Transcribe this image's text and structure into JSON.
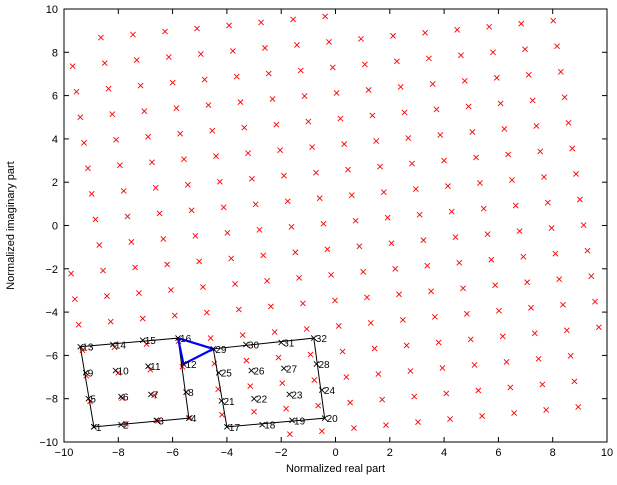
{
  "chart_data": {
    "type": "scatter",
    "title": "",
    "xlabel": "Normalized real part",
    "ylabel": "Normalized imaginary part",
    "xlim": [
      -10,
      10
    ],
    "ylim": [
      -10,
      10
    ],
    "xticks": [
      -10,
      -8,
      -6,
      -4,
      -2,
      0,
      2,
      4,
      6,
      8,
      10
    ],
    "yticks": [
      -10,
      -8,
      -6,
      -4,
      -2,
      0,
      2,
      4,
      6,
      8,
      10
    ],
    "grid": false,
    "marker_color": "#ff0000",
    "box_color": "#000000",
    "path_color": "#0000ff",
    "lattice": {
      "origin": [
        -8.9,
        -9.3
      ],
      "step_a": [
        1.18,
        0.14
      ],
      "step_b": [
        -0.14,
        1.18
      ],
      "a_range": [
        -2,
        16
      ],
      "b_range": [
        -1,
        17
      ]
    },
    "labeled_points": [
      {
        "label": "1",
        "x": -8.9,
        "y": -9.3
      },
      {
        "label": "2",
        "x": -7.9,
        "y": -9.2
      },
      {
        "label": "3",
        "x": -6.6,
        "y": -9.0
      },
      {
        "label": "4",
        "x": -5.4,
        "y": -8.9
      },
      {
        "label": "5",
        "x": -9.1,
        "y": -8.0
      },
      {
        "label": "6",
        "x": -7.9,
        "y": -7.9
      },
      {
        "label": "7",
        "x": -6.8,
        "y": -7.8
      },
      {
        "label": "8",
        "x": -5.5,
        "y": -7.7
      },
      {
        "label": "9",
        "x": -9.2,
        "y": -6.8
      },
      {
        "label": "10",
        "x": -8.1,
        "y": -6.7
      },
      {
        "label": "11",
        "x": -6.9,
        "y": -6.5
      },
      {
        "label": "12",
        "x": -5.6,
        "y": -6.4
      },
      {
        "label": "13",
        "x": -9.4,
        "y": -5.6
      },
      {
        "label": "14",
        "x": -8.2,
        "y": -5.5
      },
      {
        "label": "15",
        "x": -7.1,
        "y": -5.3
      },
      {
        "label": "16",
        "x": -5.8,
        "y": -5.2
      },
      {
        "label": "17",
        "x": -4.0,
        "y": -9.3
      },
      {
        "label": "18",
        "x": -2.7,
        "y": -9.2
      },
      {
        "label": "19",
        "x": -1.6,
        "y": -9.0
      },
      {
        "label": "20",
        "x": -0.4,
        "y": -8.9
      },
      {
        "label": "21",
        "x": -4.2,
        "y": -8.1
      },
      {
        "label": "22",
        "x": -3.0,
        "y": -8.0
      },
      {
        "label": "23",
        "x": -1.7,
        "y": -7.8
      },
      {
        "label": "24",
        "x": -0.5,
        "y": -7.6
      },
      {
        "label": "25",
        "x": -4.3,
        "y": -6.8
      },
      {
        "label": "26",
        "x": -3.1,
        "y": -6.7
      },
      {
        "label": "27",
        "x": -1.9,
        "y": -6.6
      },
      {
        "label": "28",
        "x": -0.7,
        "y": -6.4
      },
      {
        "label": "29",
        "x": -4.5,
        "y": -5.7
      },
      {
        "label": "30",
        "x": -3.3,
        "y": -5.5
      },
      {
        "label": "31",
        "x": -2.0,
        "y": -5.4
      },
      {
        "label": "32",
        "x": -0.8,
        "y": -5.2
      }
    ],
    "boxes": [
      {
        "corners": [
          "1",
          "4",
          "16",
          "13"
        ]
      },
      {
        "corners": [
          "17",
          "20",
          "32",
          "29"
        ]
      }
    ],
    "highlight_path": [
      "16",
      "29",
      "12",
      "16"
    ]
  }
}
